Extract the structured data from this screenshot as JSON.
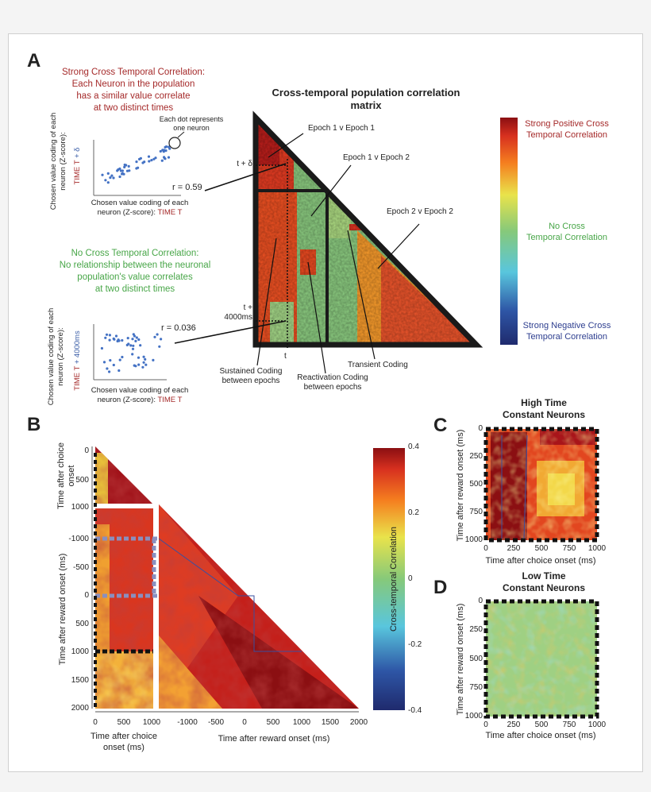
{
  "panels": {
    "a": "A",
    "b": "B",
    "c": "C",
    "d": "D"
  },
  "panel_a": {
    "title": "Cross-temporal population correlation matrix",
    "strong_title": "Strong Cross Temporal Correlation:",
    "strong_desc": [
      "Each Neuron in the population",
      "has a similar value correlate",
      "at two distinct times"
    ],
    "no_title": "No Cross Temporal Correlation:",
    "no_desc": [
      "No relationship between the neuronal",
      "population's value correlates",
      "at two distinct times"
    ],
    "dot_note": [
      "Each dot represents",
      "one neuron"
    ],
    "scatter1": {
      "ylabel_lines": [
        "Chosen value coding of each",
        "neuron (Z-score):"
      ],
      "ylabel_time": "TIME T",
      "ylabel_time_suffix": " + δ",
      "xlabel": "Chosen value coding of each",
      "xlabel2": "neuron (Z-score):",
      "xlabel_time": "TIME T",
      "r": "r = 0.59"
    },
    "scatter2": {
      "ylabel_lines": [
        "Chosen value coding of each",
        "neuron (Z-score):"
      ],
      "ylabel_time": "TIME T",
      "ylabel_time_suffix": " + 4000ms",
      "xlabel": "Chosen value coding of each",
      "xlabel2": "neuron (Z-score):",
      "xlabel_time": "TIME T",
      "r": "r = 0.036"
    },
    "annotations": {
      "e11": "Epoch 1 v Epoch 1",
      "e12": "Epoch 1 v Epoch 2",
      "e22": "Epoch 2 v Epoch 2",
      "t_delta": "t + δ",
      "t_4000": [
        "t +",
        "4000ms"
      ],
      "t": "t",
      "sustained": [
        "Sustained Coding",
        "between epochs"
      ],
      "reactivation": [
        "Reactivation Coding",
        "between epochs"
      ],
      "transient": "Transient Coding"
    },
    "colorbar_labels": {
      "pos": [
        "Strong Positive Cross",
        "Temporal Correlation"
      ],
      "zero": [
        "No Cross",
        "Temporal Correlation"
      ],
      "neg": [
        "Strong Negative Cross",
        "Temporal Correlation"
      ]
    }
  },
  "panel_b": {
    "ylabel_top": [
      "Time after choice",
      "onset"
    ],
    "ylabel_bottom": "Time after reward onset (ms)",
    "xlabel_left": [
      "Time after choice",
      "onset (ms)"
    ],
    "xlabel_right": "Time after reward onset (ms)",
    "y_ticks_choice": [
      "0",
      "500",
      "1000"
    ],
    "y_ticks_reward": [
      "-1000",
      "-500",
      "0",
      "500",
      "1000",
      "1500",
      "2000"
    ],
    "x_ticks_choice": [
      "0",
      "500",
      "1000"
    ],
    "x_ticks_reward": [
      "-1000",
      "-500",
      "0",
      "500",
      "1000",
      "1500",
      "2000"
    ],
    "colorbar": {
      "label": "Cross-temporal Correlation",
      "ticks": [
        "0.4",
        "0.2",
        "0",
        "-0.2",
        "-0.4"
      ],
      "range": [
        -0.4,
        0.4
      ]
    }
  },
  "panel_c": {
    "title": [
      "High Time",
      "Constant Neurons"
    ],
    "ylabel": "Time after reward onset (ms)",
    "xlabel": "Time after choice onset (ms)",
    "y_ticks": [
      "0",
      "250",
      "500",
      "750",
      "1000"
    ],
    "x_ticks": [
      "0",
      "250",
      "500",
      "750",
      "1000"
    ]
  },
  "panel_d": {
    "title": [
      "Low Time",
      "Constant Neurons"
    ],
    "ylabel": "Time after reward onset (ms)",
    "xlabel": "Time after choice onset (ms)",
    "y_ticks": [
      "0",
      "250",
      "500",
      "750",
      "1000"
    ],
    "x_ticks": [
      "0",
      "250",
      "500",
      "750",
      "1000"
    ]
  },
  "colors": {
    "dark_red": "#8b0f12",
    "red": "#d7301f",
    "orange": "#f57f1f",
    "yellow": "#e9e34b",
    "green": "#86c97a",
    "cyan": "#59c6dd",
    "blue": "#2e56a6",
    "navy": "#1f2a6d"
  }
}
